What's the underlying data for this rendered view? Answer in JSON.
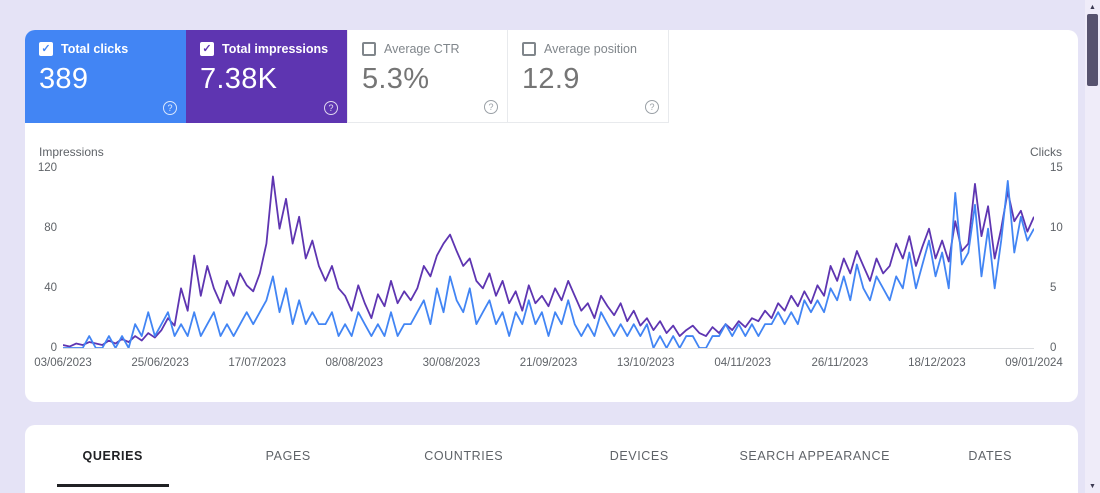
{
  "icons": {
    "check": "✓",
    "help": "?",
    "arrow_up": "▲",
    "arrow_down": "▼"
  },
  "cards": [
    {
      "label": "Total clicks",
      "value": "389",
      "checked": true,
      "color": "#4285f4"
    },
    {
      "label": "Total impressions",
      "value": "7.38K",
      "checked": true,
      "color": "#5e35b1"
    },
    {
      "label": "Average CTR",
      "value": "5.3%",
      "checked": false
    },
    {
      "label": "Average position",
      "value": "12.9",
      "checked": false
    }
  ],
  "chart_data": {
    "type": "line",
    "left_axis_label": "Impressions",
    "right_axis_label": "Clicks",
    "left_ticks": [
      "120",
      "80",
      "40",
      "0"
    ],
    "right_ticks": [
      "15",
      "10",
      "5",
      "0"
    ],
    "left_ylim": [
      0,
      120
    ],
    "right_ylim": [
      0,
      15
    ],
    "grid": false,
    "legend_position": "none",
    "x_labels": [
      "03/06/2023",
      "25/06/2023",
      "17/07/2023",
      "08/08/2023",
      "30/08/2023",
      "21/09/2023",
      "13/10/2023",
      "04/11/2023",
      "26/11/2023",
      "18/12/2023",
      "09/01/2024"
    ],
    "series": [
      {
        "name": "Impressions",
        "axis": "left",
        "ymax": 120,
        "color": "#5e35b1",
        "values": [
          2,
          1,
          3,
          2,
          4,
          3,
          2,
          5,
          3,
          6,
          4,
          8,
          5,
          10,
          7,
          12,
          20,
          15,
          40,
          25,
          62,
          35,
          55,
          40,
          30,
          45,
          35,
          50,
          42,
          38,
          50,
          70,
          115,
          80,
          100,
          70,
          88,
          60,
          72,
          55,
          45,
          55,
          40,
          35,
          25,
          42,
          30,
          20,
          36,
          28,
          45,
          30,
          38,
          32,
          40,
          55,
          48,
          62,
          70,
          76,
          65,
          55,
          60,
          45,
          40,
          50,
          35,
          45,
          30,
          38,
          25,
          42,
          30,
          35,
          28,
          40,
          32,
          45,
          35,
          25,
          30,
          20,
          35,
          28,
          22,
          30,
          18,
          25,
          15,
          20,
          12,
          18,
          10,
          15,
          8,
          12,
          15,
          10,
          8,
          14,
          10,
          16,
          12,
          18,
          14,
          20,
          18,
          25,
          20,
          30,
          25,
          35,
          28,
          38,
          30,
          42,
          35,
          55,
          45,
          60,
          50,
          65,
          55,
          45,
          60,
          50,
          55,
          70,
          60,
          75,
          55,
          68,
          80,
          60,
          72,
          58,
          85,
          65,
          70,
          110,
          75,
          95,
          60,
          80,
          105,
          85,
          92,
          78,
          88
        ]
      },
      {
        "name": "Clicks",
        "axis": "right",
        "ymax": 15,
        "color": "#4285f4",
        "values": [
          0,
          0,
          0,
          0,
          1,
          0,
          0,
          1,
          0,
          1,
          0,
          2,
          1,
          3,
          1,
          2,
          3,
          1,
          2,
          1,
          3,
          1,
          2,
          3,
          1,
          2,
          1,
          2,
          3,
          2,
          3,
          4,
          6,
          3,
          5,
          2,
          4,
          2,
          3,
          2,
          2,
          3,
          1,
          2,
          1,
          3,
          2,
          1,
          2,
          1,
          3,
          1,
          2,
          2,
          3,
          4,
          2,
          5,
          3,
          6,
          4,
          3,
          5,
          2,
          3,
          4,
          2,
          3,
          1,
          3,
          2,
          4,
          2,
          3,
          1,
          3,
          2,
          4,
          2,
          1,
          2,
          1,
          3,
          2,
          1,
          2,
          1,
          2,
          1,
          2,
          0,
          1,
          0,
          1,
          0,
          1,
          1,
          0,
          0,
          1,
          1,
          2,
          1,
          2,
          1,
          2,
          1,
          2,
          2,
          3,
          2,
          3,
          2,
          4,
          3,
          4,
          3,
          5,
          4,
          6,
          4,
          7,
          5,
          4,
          6,
          5,
          4,
          6,
          5,
          8,
          5,
          7,
          9,
          6,
          8,
          5,
          13,
          7,
          8,
          12,
          6,
          10,
          5,
          9,
          14,
          8,
          11,
          9,
          10
        ]
      }
    ]
  },
  "tabs": [
    {
      "label": "QUERIES",
      "active": true
    },
    {
      "label": "PAGES",
      "active": false
    },
    {
      "label": "COUNTRIES",
      "active": false
    },
    {
      "label": "DEVICES",
      "active": false
    },
    {
      "label": "SEARCH APPEARANCE",
      "active": false
    },
    {
      "label": "DATES",
      "active": false
    }
  ]
}
